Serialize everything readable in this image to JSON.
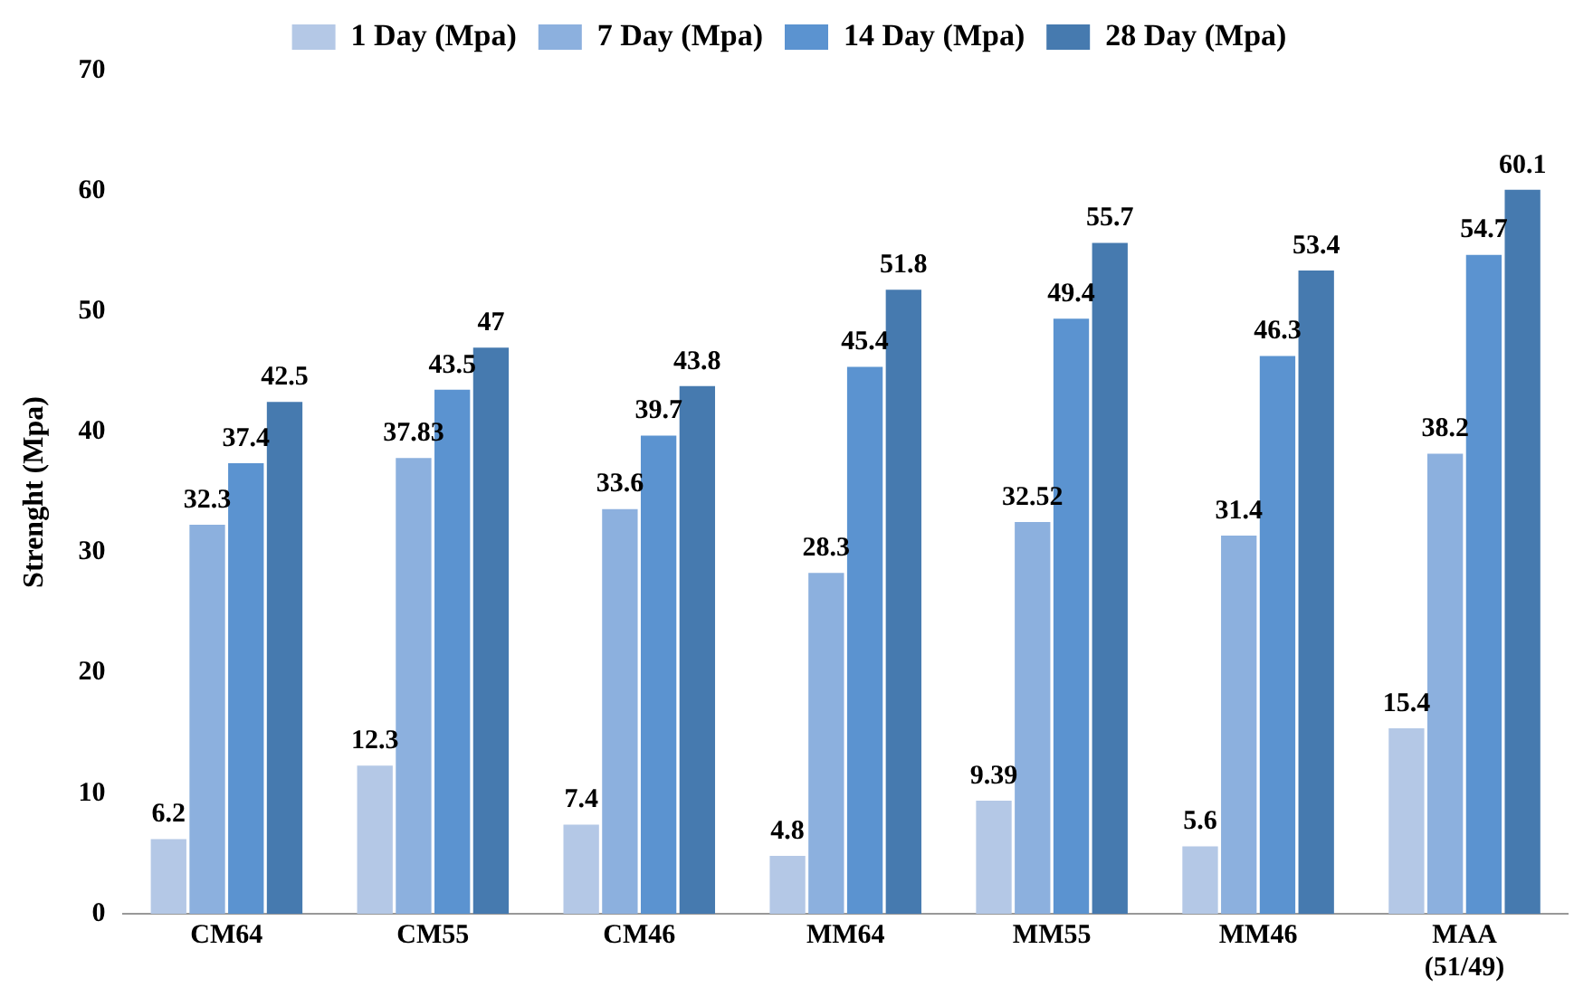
{
  "chart_data": {
    "type": "bar",
    "ylabel": "Strenght (Mpa)",
    "categories": [
      "CM64",
      "CM55",
      "CM46",
      "MM64",
      "MM55",
      "MM46",
      "MAA (51/49)"
    ],
    "series": [
      {
        "name": "1 Day (Mpa)",
        "color": "#b4c8e6",
        "values": [
          6.2,
          12.3,
          7.4,
          4.8,
          9.39,
          5.6,
          15.4
        ]
      },
      {
        "name": "7 Day (Mpa)",
        "color": "#8cb0de",
        "values": [
          32.3,
          37.83,
          33.6,
          28.3,
          32.52,
          31.4,
          38.2
        ]
      },
      {
        "name": "14 Day (Mpa)",
        "color": "#5b93d0",
        "values": [
          37.4,
          43.5,
          39.7,
          45.4,
          49.4,
          46.3,
          54.7
        ]
      },
      {
        "name": "28 Day (Mpa)",
        "color": "#467aaf",
        "values": [
          42.5,
          47,
          43.8,
          51.8,
          55.7,
          53.4,
          60.1
        ]
      }
    ],
    "ylim": [
      0,
      70
    ],
    "yticks": [
      0,
      10,
      20,
      30,
      40,
      50,
      60,
      70
    ],
    "grid": false,
    "legend": "top",
    "data_labels": true
  }
}
